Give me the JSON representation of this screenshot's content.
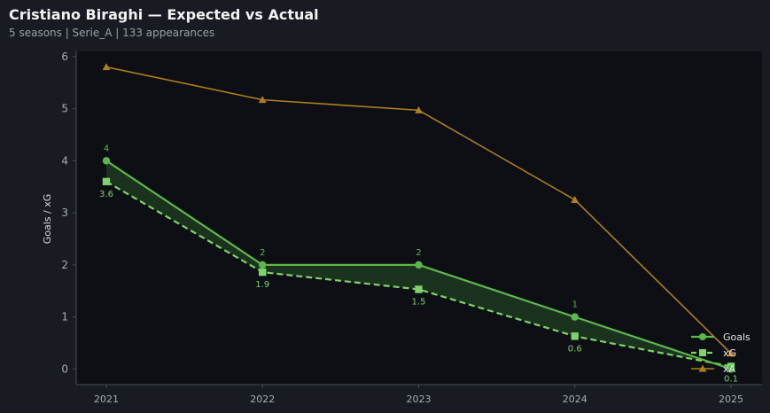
{
  "header": {
    "title": "Cristiano Biraghi — Expected vs Actual",
    "subtitle": "5 seasons | Serie_A | 133 appearances"
  },
  "chart_data": {
    "type": "line",
    "title": "Cristiano Biraghi — Expected vs Actual",
    "xlabel": "",
    "ylabel": "Goals / xG",
    "x": [
      "2021",
      "2022",
      "2023",
      "2024",
      "2025"
    ],
    "ylim": [
      -0.3,
      6.1
    ],
    "yticks": [
      0,
      1,
      2,
      3,
      4,
      5,
      6
    ],
    "grid": false,
    "legend_position": "bottom-right",
    "series": [
      {
        "name": "Goals",
        "values": [
          4,
          2,
          2,
          1,
          0
        ],
        "labels": [
          "4",
          "2",
          "2",
          "1",
          ""
        ],
        "color": "#5cb84c",
        "marker": "circle",
        "linestyle": "solid"
      },
      {
        "name": "xG",
        "values": [
          3.6,
          1.86,
          1.53,
          0.63,
          0.05
        ],
        "labels": [
          "3.6",
          "1.9",
          "1.5",
          "0.6",
          "0.1"
        ],
        "color": "#7ed36a",
        "marker": "square",
        "linestyle": "dashed"
      },
      {
        "name": "xA",
        "values": [
          5.8,
          5.17,
          4.97,
          3.25,
          0.3
        ],
        "labels": [
          "",
          "",
          "",
          "",
          ""
        ],
        "color": "#b07e1e",
        "marker": "triangle",
        "linestyle": "solid"
      }
    ],
    "fill_between": {
      "series": [
        "Goals",
        "xG"
      ],
      "color": "#1e3a20"
    },
    "colors": {
      "page_background": "#181b22",
      "plot_background": "#0d0f14",
      "axis": "#4a4f57"
    }
  }
}
